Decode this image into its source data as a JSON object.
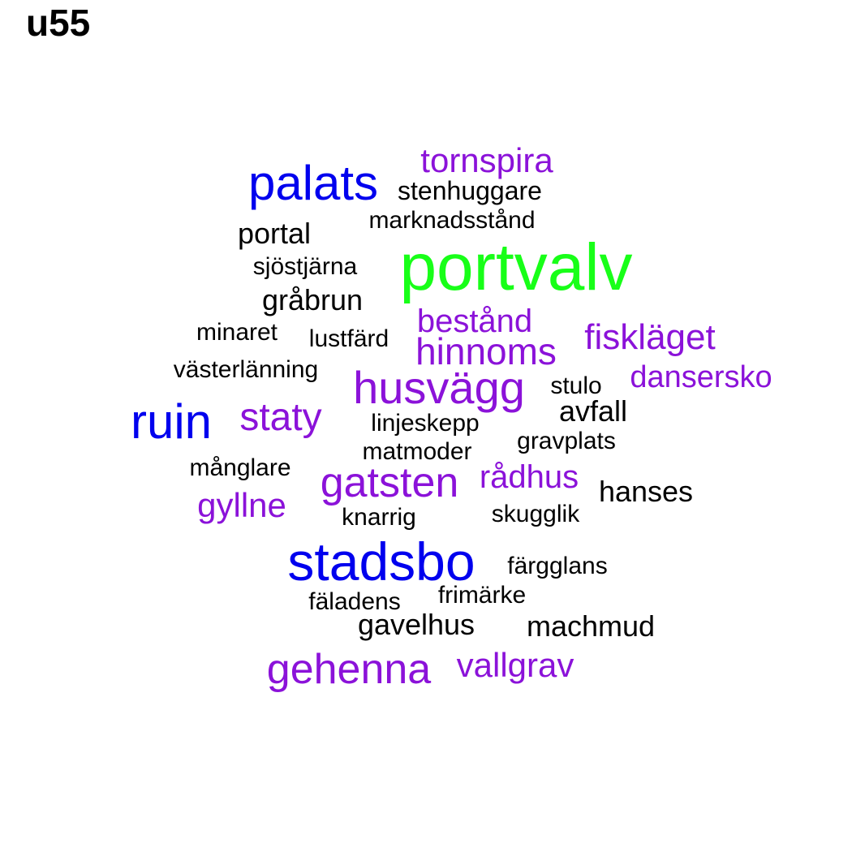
{
  "title": "u55",
  "colors": {
    "black": "#000000",
    "blue": "#0000ee",
    "purple": "#8b12d9",
    "green": "#18ff18"
  },
  "words": [
    {
      "text": "portvalv",
      "color": "green"
    },
    {
      "text": "palats",
      "color": "blue"
    },
    {
      "text": "stadsbo",
      "color": "blue"
    },
    {
      "text": "ruin",
      "color": "blue"
    },
    {
      "text": "tornspira",
      "color": "purple"
    },
    {
      "text": "husvägg",
      "color": "purple"
    },
    {
      "text": "gatsten",
      "color": "purple"
    },
    {
      "text": "gehenna",
      "color": "purple"
    },
    {
      "text": "hinnoms",
      "color": "purple"
    },
    {
      "text": "fiskläget",
      "color": "purple"
    },
    {
      "text": "staty",
      "color": "purple"
    },
    {
      "text": "bestånd",
      "color": "purple"
    },
    {
      "text": "dansersko",
      "color": "purple"
    },
    {
      "text": "rådhus",
      "color": "purple"
    },
    {
      "text": "gyllne",
      "color": "purple"
    },
    {
      "text": "vallgrav",
      "color": "purple"
    },
    {
      "text": "stenhuggare",
      "color": "black"
    },
    {
      "text": "marknadsstånd",
      "color": "black"
    },
    {
      "text": "portal",
      "color": "black"
    },
    {
      "text": "sjöstjärna",
      "color": "black"
    },
    {
      "text": "gråbrun",
      "color": "black"
    },
    {
      "text": "minaret",
      "color": "black"
    },
    {
      "text": "lustfärd",
      "color": "black"
    },
    {
      "text": "västerlänning",
      "color": "black"
    },
    {
      "text": "stulo",
      "color": "black"
    },
    {
      "text": "avfall",
      "color": "black"
    },
    {
      "text": "linjeskepp",
      "color": "black"
    },
    {
      "text": "matmoder",
      "color": "black"
    },
    {
      "text": "gravplats",
      "color": "black"
    },
    {
      "text": "månglare",
      "color": "black"
    },
    {
      "text": "hanses",
      "color": "black"
    },
    {
      "text": "knarrig",
      "color": "black"
    },
    {
      "text": "skugglik",
      "color": "black"
    },
    {
      "text": "färgglans",
      "color": "black"
    },
    {
      "text": "fäladens",
      "color": "black"
    },
    {
      "text": "frimärke",
      "color": "black"
    },
    {
      "text": "gavelhus",
      "color": "black"
    },
    {
      "text": "machmud",
      "color": "black"
    }
  ]
}
